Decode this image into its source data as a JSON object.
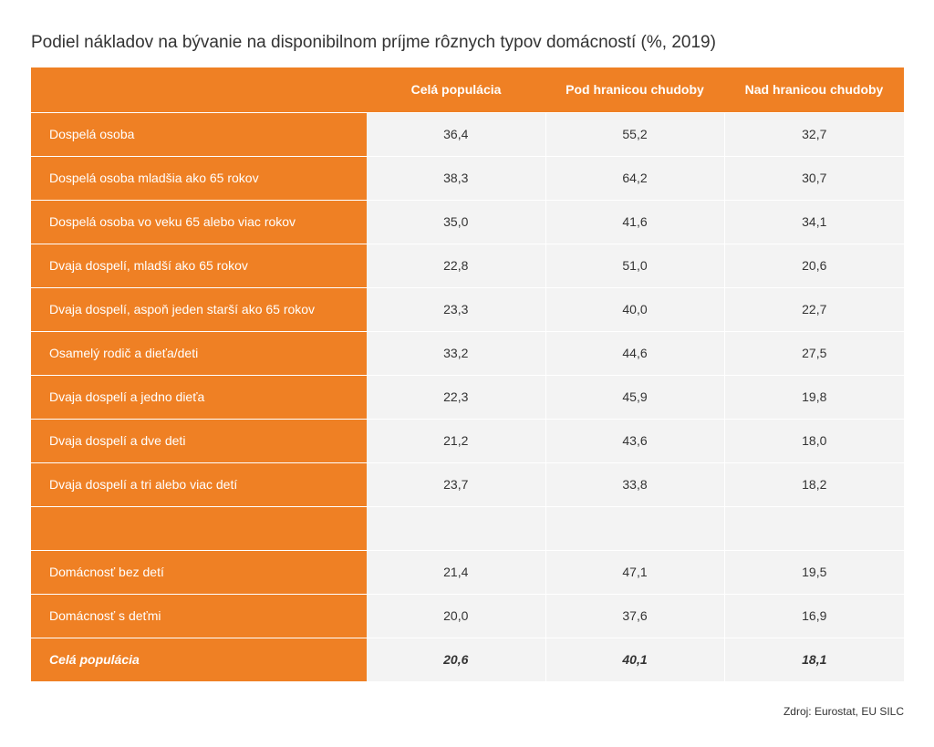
{
  "title": "Podiel nákladov na bývanie na disponibilnom príjme rôznych typov domácností (%, 2019)",
  "source": "Zdroj: Eurostat, EU SILC",
  "colors": {
    "accent": "#ef8024",
    "cell_bg": "#f3f3f3",
    "text": "#333333"
  },
  "chart_data": {
    "type": "table",
    "title": "Podiel nákladov na bývanie na disponibilnom príjme rôznych typov domácností (%, 2019)",
    "columns": [
      "",
      "Celá populácia",
      "Pod hranicou chudoby",
      "Nad hranicou chudoby"
    ],
    "rows": [
      {
        "label": "Dospelá osoba",
        "values": [
          "36,4",
          "55,2",
          "32,7"
        ],
        "emphasis": false
      },
      {
        "label": "Dospelá osoba mladšia ako 65 rokov",
        "values": [
          "38,3",
          "64,2",
          "30,7"
        ],
        "emphasis": false
      },
      {
        "label": "Dospelá osoba vo veku 65 alebo viac rokov",
        "values": [
          "35,0",
          "41,6",
          "34,1"
        ],
        "emphasis": false
      },
      {
        "label": "Dvaja dospelí, mladší ako 65 rokov",
        "values": [
          "22,8",
          "51,0",
          "20,6"
        ],
        "emphasis": false
      },
      {
        "label": "Dvaja dospelí, aspoň jeden starší ako 65 rokov",
        "values": [
          "23,3",
          "40,0",
          "22,7"
        ],
        "emphasis": false
      },
      {
        "label": "Osamelý rodič a dieťa/deti",
        "values": [
          "33,2",
          "44,6",
          "27,5"
        ],
        "emphasis": false
      },
      {
        "label": "Dvaja dospelí a jedno dieťa",
        "values": [
          "22,3",
          "45,9",
          "19,8"
        ],
        "emphasis": false
      },
      {
        "label": "Dvaja dospelí a dve deti",
        "values": [
          "21,2",
          "43,6",
          "18,0"
        ],
        "emphasis": false
      },
      {
        "label": "Dvaja dospelí a tri alebo viac detí",
        "values": [
          "23,7",
          "33,8",
          "18,2"
        ],
        "emphasis": false
      },
      {
        "label": "",
        "values": [
          "",
          "",
          ""
        ],
        "emphasis": false
      },
      {
        "label": "Domácnosť bez detí",
        "values": [
          "21,4",
          "47,1",
          "19,5"
        ],
        "emphasis": false
      },
      {
        "label": "Domácnosť s deťmi",
        "values": [
          "20,0",
          "37,6",
          "16,9"
        ],
        "emphasis": false
      },
      {
        "label": "Celá populácia",
        "values": [
          "20,6",
          "40,1",
          "18,1"
        ],
        "emphasis": true
      }
    ]
  }
}
